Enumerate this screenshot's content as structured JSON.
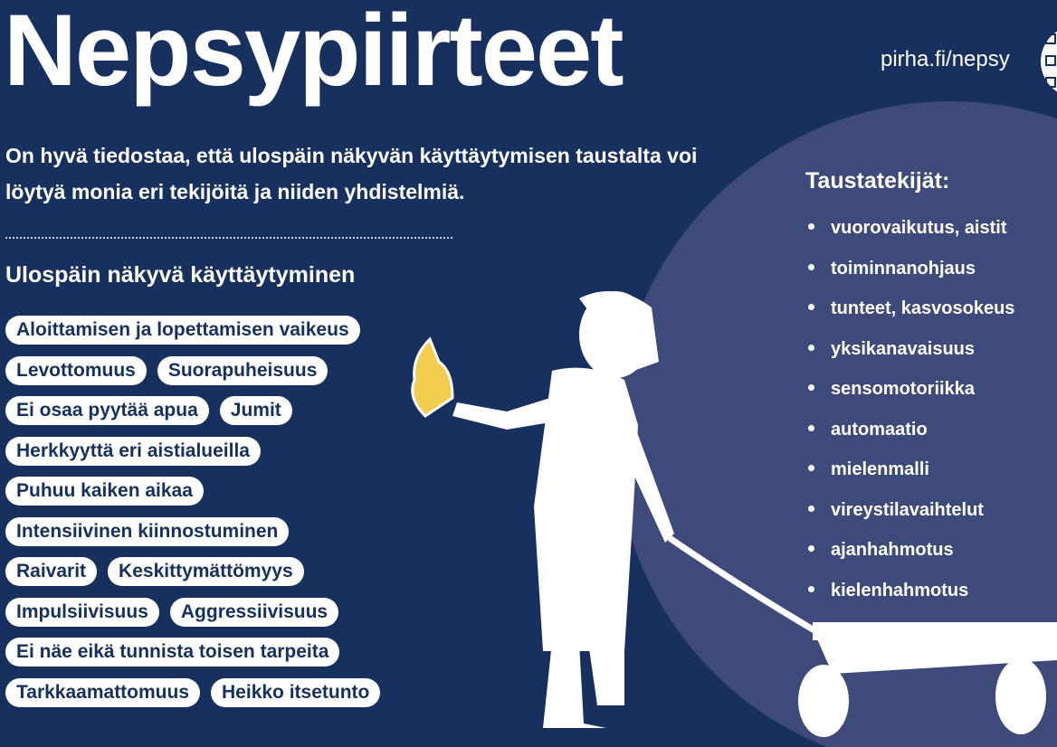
{
  "header": {
    "title": "Nepsypiirteet",
    "url": "pirha.fi/nepsy"
  },
  "intro": "On hyvä tiedostaa, että ulospäin näkyvän käyttäytymisen taustalta voi löytyä monia eri tekijöitä ja niiden yhdistelmiä.",
  "behaviour": {
    "heading": "Ulospäin näkyvä käyttäytyminen",
    "rows": [
      [
        "Aloittamisen ja lopettamisen vaikeus"
      ],
      [
        "Levottomuus",
        "Suorapuheisuus"
      ],
      [
        "Ei osaa pyytää apua",
        "Jumit"
      ],
      [
        "Herkkyyttä eri aistialueilla"
      ],
      [
        "Puhuu kaiken aikaa"
      ],
      [
        "Intensiivinen kiinnostuminen"
      ],
      [
        "Raivarit",
        "Keskittymättömyys"
      ],
      [
        "Impulsiivisuus",
        "Aggressiivisuus"
      ],
      [
        "Ei näe eikä tunnista toisen tarpeita"
      ],
      [
        "Tarkkaamattomuus",
        "Heikko itsetunto"
      ]
    ]
  },
  "factors": {
    "heading": "Taustatekijät:",
    "items": [
      "vuorovaikutus, aistit",
      "toiminnanohjaus",
      "tunteet, kasvosokeus",
      "yksikanavaisuus",
      "sensomotoriikka",
      "automaatio",
      "mielenmalli",
      "vireystilavaihtelut",
      "ajanhahmotus",
      "kielenhahmotus"
    ]
  },
  "colors": {
    "background": "#17305e",
    "circle": "#3d4a7a",
    "butterfly": "#f2cd4f",
    "pill": "#ffffff"
  }
}
